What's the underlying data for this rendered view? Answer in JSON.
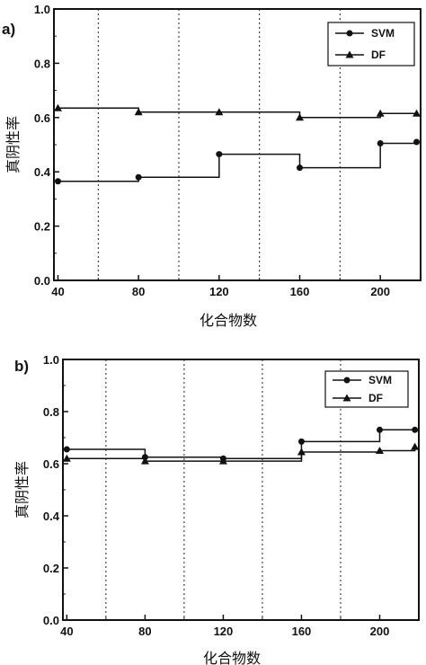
{
  "chart_data": [
    {
      "type": "line",
      "panel_label": "a)",
      "xlabel": "化合物数",
      "ylabel": "真阴性率",
      "xlim": [
        38,
        220
      ],
      "ylim": [
        0.0,
        1.0
      ],
      "x_ticks": [
        40,
        80,
        120,
        160,
        200
      ],
      "x_tick_labels": [
        "40",
        "80",
        "120",
        "160",
        "200"
      ],
      "y_ticks": [
        0.0,
        0.2,
        0.4,
        0.6,
        0.8,
        1.0
      ],
      "y_tick_labels": [
        "0.0",
        "0.2",
        "0.4",
        "0.6",
        "0.8",
        "1.0"
      ],
      "vertical_gridlines": [
        60,
        100,
        140,
        180
      ],
      "legend_position": "top-right",
      "step_style": "horizontal step from each point to the next",
      "series": [
        {
          "name": "SVM",
          "marker": "circle",
          "x": [
            40,
            80,
            120,
            160,
            200,
            218
          ],
          "y": [
            0.365,
            0.38,
            0.465,
            0.415,
            0.505,
            0.51
          ]
        },
        {
          "name": "DF",
          "marker": "triangle",
          "x": [
            40,
            80,
            120,
            160,
            200,
            218
          ],
          "y": [
            0.635,
            0.62,
            0.62,
            0.6,
            0.615,
            0.615
          ]
        }
      ]
    },
    {
      "type": "line",
      "panel_label": "b)",
      "xlabel": "化合物数",
      "ylabel": "真阴性率",
      "xlim": [
        38,
        220
      ],
      "ylim": [
        0.0,
        1.0
      ],
      "x_ticks": [
        40,
        80,
        120,
        160,
        200
      ],
      "x_tick_labels": [
        "40",
        "80",
        "120",
        "160",
        "200"
      ],
      "y_ticks": [
        0.0,
        0.2,
        0.4,
        0.6,
        0.8,
        1.0
      ],
      "y_tick_labels": [
        "0.0",
        "0.2",
        "0.4",
        "0.6",
        "0.8",
        "1.0"
      ],
      "vertical_gridlines": [
        60,
        100,
        140,
        180
      ],
      "legend_position": "top-right",
      "step_style": "horizontal step from each point to the next",
      "series": [
        {
          "name": "SVM",
          "marker": "circle",
          "x": [
            40,
            80,
            120,
            160,
            200,
            218
          ],
          "y": [
            0.655,
            0.625,
            0.62,
            0.685,
            0.73,
            0.73
          ]
        },
        {
          "name": "DF",
          "marker": "triangle",
          "x": [
            40,
            80,
            120,
            160,
            200,
            218
          ],
          "y": [
            0.62,
            0.61,
            0.61,
            0.645,
            0.65,
            0.665
          ]
        }
      ]
    }
  ]
}
